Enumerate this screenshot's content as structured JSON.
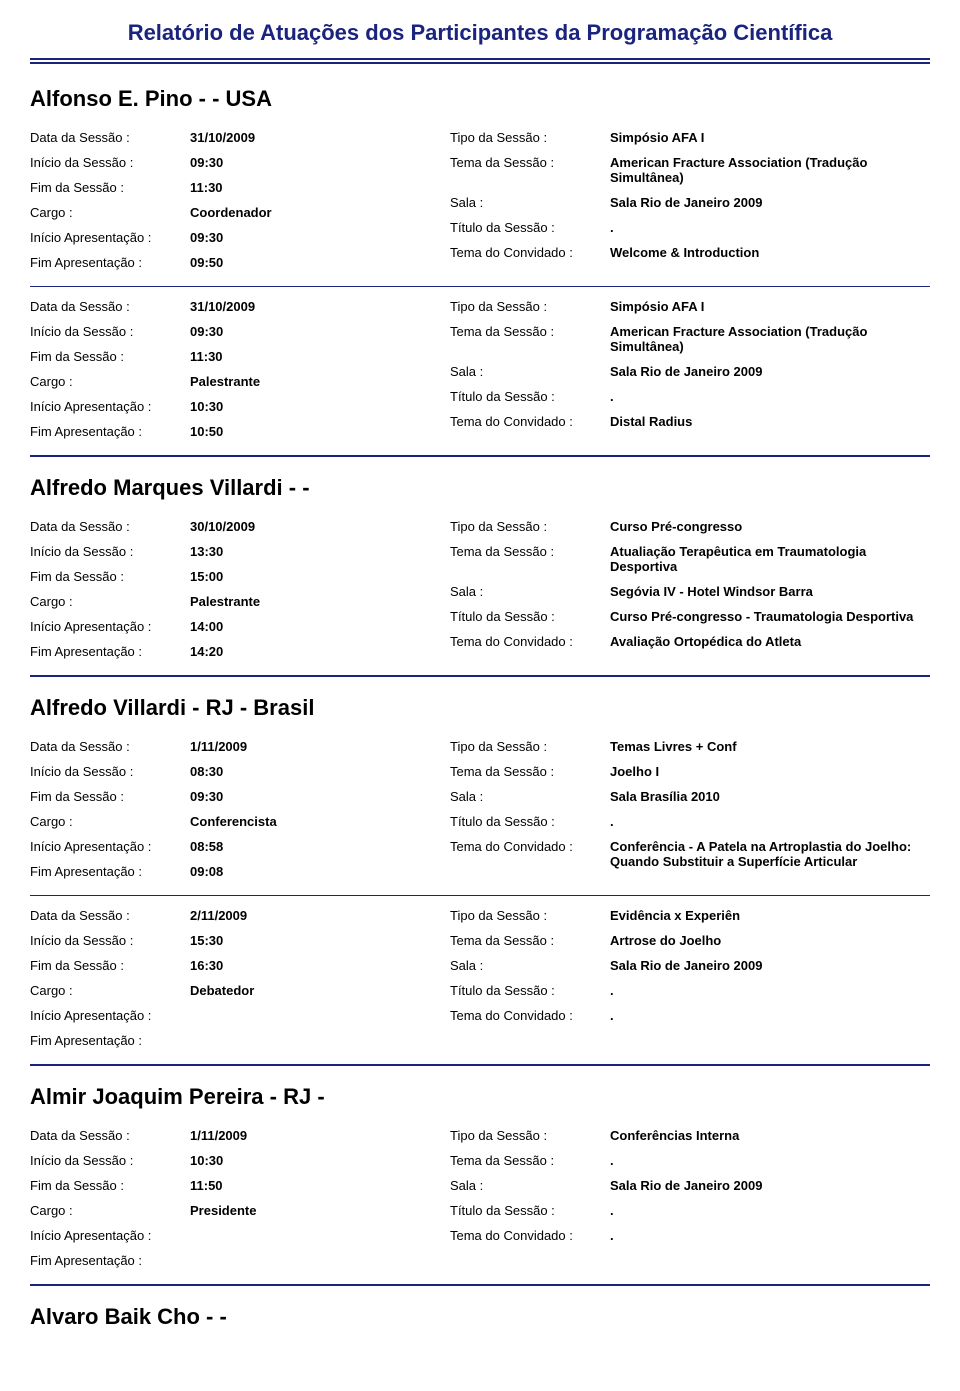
{
  "report_title": "Relatório de Atuações dos Participantes da Programação Científica",
  "labels": {
    "data_sessao": "Data da Sessão :",
    "inicio_sessao": "Início da Sessão :",
    "fim_sessao": "Fim da Sessão :",
    "cargo": "Cargo :",
    "inicio_apres": "Início Apresentação :",
    "fim_apres": "Fim Apresentação :",
    "tipo_sessao": "Tipo da Sessão :",
    "tema_sessao": "Tema da Sessão :",
    "sala": "Sala :",
    "titulo_sessao": "Título da Sessão :",
    "tema_convidado": "Tema do Convidado :"
  },
  "participants": [
    {
      "name": "Alfonso E. Pino -  - USA",
      "sessions": [
        {
          "data_sessao": "31/10/2009",
          "inicio_sessao": "09:30",
          "fim_sessao": "11:30",
          "cargo": "Coordenador",
          "inicio_apres": "09:30",
          "fim_apres": "09:50",
          "tipo_sessao": "Simpósio AFA I",
          "tema_sessao": "American Fracture Association (Tradução Simultânea)",
          "sala": "Sala Rio de Janeiro 2009",
          "titulo_sessao": ".",
          "tema_convidado": "Welcome & Introduction"
        },
        {
          "data_sessao": "31/10/2009",
          "inicio_sessao": "09:30",
          "fim_sessao": "11:30",
          "cargo": "Palestrante",
          "inicio_apres": "10:30",
          "fim_apres": "10:50",
          "tipo_sessao": "Simpósio AFA I",
          "tema_sessao": "American Fracture Association (Tradução Simultânea)",
          "sala": "Sala Rio de Janeiro 2009",
          "titulo_sessao": ".",
          "tema_convidado": "Distal Radius"
        }
      ]
    },
    {
      "name": "Alfredo Marques Villardi -  -",
      "sessions": [
        {
          "data_sessao": "30/10/2009",
          "inicio_sessao": "13:30",
          "fim_sessao": "15:00",
          "cargo": "Palestrante",
          "inicio_apres": "14:00",
          "fim_apres": "14:20",
          "tipo_sessao": "Curso Pré-congresso",
          "tema_sessao": "Atualiação Terapêutica em Traumatologia Desportiva",
          "sala": "Segóvia IV - Hotel Windsor Barra",
          "titulo_sessao": "Curso Pré-congresso - Traumatologia Desportiva",
          "tema_convidado": "Avaliação Ortopédica do Atleta"
        }
      ]
    },
    {
      "name": "Alfredo Villardi - RJ - Brasil",
      "sessions": [
        {
          "data_sessao": "1/11/2009",
          "inicio_sessao": "08:30",
          "fim_sessao": "09:30",
          "cargo": "Conferencista",
          "inicio_apres": "08:58",
          "fim_apres": "09:08",
          "tipo_sessao": "Temas Livres + Conf",
          "tema_sessao": "Joelho I",
          "sala": "Sala Brasília 2010",
          "titulo_sessao": ".",
          "tema_convidado": "Conferência - A Patela na Artroplastia do Joelho: Quando Substituir a Superfície Articular"
        },
        {
          "data_sessao": "2/11/2009",
          "inicio_sessao": "15:30",
          "fim_sessao": "16:30",
          "cargo": "Debatedor",
          "inicio_apres": "",
          "fim_apres": "",
          "tipo_sessao": "Evidência x Experiên",
          "tema_sessao": "Artrose do Joelho",
          "sala": "Sala Rio de Janeiro 2009",
          "titulo_sessao": ".",
          "tema_convidado": "."
        }
      ]
    },
    {
      "name": "Almir Joaquim Pereira - RJ -",
      "sessions": [
        {
          "data_sessao": "1/11/2009",
          "inicio_sessao": "10:30",
          "fim_sessao": "11:50",
          "cargo": "Presidente",
          "inicio_apres": "",
          "fim_apres": "",
          "tipo_sessao": "Conferências Interna",
          "tema_sessao": ".",
          "sala": "Sala Rio de Janeiro 2009",
          "titulo_sessao": ".",
          "tema_convidado": "."
        }
      ]
    },
    {
      "name": "Alvaro Baik Cho -  -",
      "sessions": []
    }
  ]
}
